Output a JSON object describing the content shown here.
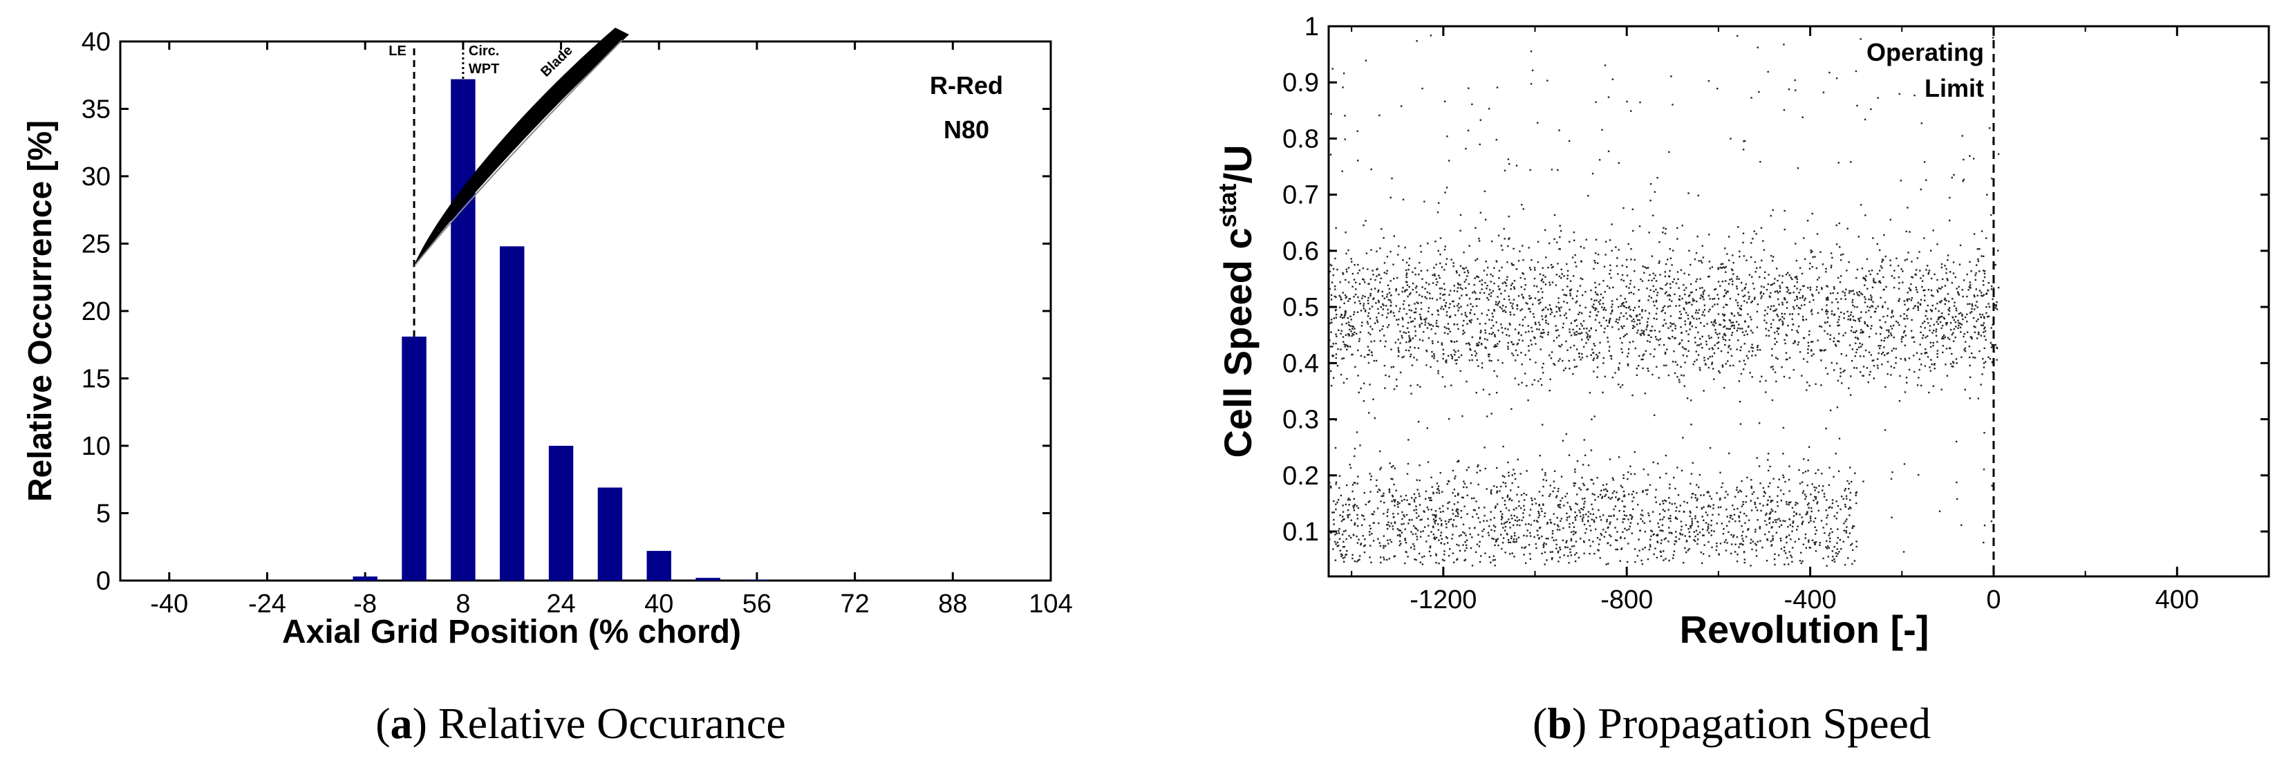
{
  "captions": [
    {
      "letter": "a",
      "text": "Relative Occurance"
    },
    {
      "letter": "b",
      "text": "Propagation Speed"
    }
  ],
  "chart_data": [
    {
      "type": "bar",
      "xlabel": "Axial Grid Position (% chord)",
      "ylabel": "Relative Occurrence [%]",
      "xlim": [
        -48,
        104
      ],
      "ylim": [
        0,
        40
      ],
      "xticks": [
        -40,
        -24,
        -8,
        8,
        24,
        40,
        56,
        72,
        88,
        104
      ],
      "yticks": [
        0,
        5,
        10,
        15,
        20,
        25,
        30,
        35,
        40
      ],
      "bar_color": "#00008b",
      "x": [
        -48,
        -40,
        -32,
        -24,
        -16,
        -8,
        0,
        8,
        16,
        24,
        32,
        40,
        48,
        56,
        64,
        72,
        80,
        88,
        96,
        104
      ],
      "values": [
        0,
        0,
        0,
        0,
        0,
        0.3,
        18.1,
        37.2,
        24.8,
        10.0,
        6.9,
        2.2,
        0.2,
        0.05,
        0,
        0,
        0,
        0,
        0,
        0
      ],
      "annotations": {
        "le_label": "LE",
        "le_x": 0,
        "circ_label_1": "Circ.",
        "circ_label_2": "WPT",
        "circ_x": 8,
        "blade_label": "Blade",
        "case_line1": "R-Red",
        "case_line2": "N80"
      }
    },
    {
      "type": "scatter",
      "xlabel": "Revolution [-]",
      "ylabel_main": "Cell Speed c",
      "ylabel_sup": "stat",
      "ylabel_tail": "/U",
      "xlim": [
        -1450,
        600
      ],
      "ylim": [
        0.02,
        1.0
      ],
      "xticks": [
        -1200,
        -800,
        -400,
        0,
        400
      ],
      "minor_xticks": [
        -1400,
        -1000,
        -600,
        -200,
        200,
        600
      ],
      "yticks": [
        0.1,
        0.2,
        0.3,
        0.4,
        0.5,
        0.6,
        0.7,
        0.8,
        0.9,
        1
      ],
      "point_color": "#222222",
      "clusters": [
        {
          "name": "",
          "x_range": [
            -1450,
            10
          ],
          "y_center": 0.49,
          "y_spread": 0.06,
          "count": 2600
        },
        {
          "name": "",
          "x_range": [
            -1450,
            -300
          ],
          "y_center": 0.12,
          "y_spread": 0.05,
          "count": 1700
        },
        {
          "name": "",
          "x_range": [
            -1450,
            10
          ],
          "y_center": 0.55,
          "y_spread": 0.25,
          "count": 500
        }
      ],
      "limit_x": 0,
      "limit_label_1": "Operating",
      "limit_label_2": "Limit"
    }
  ]
}
